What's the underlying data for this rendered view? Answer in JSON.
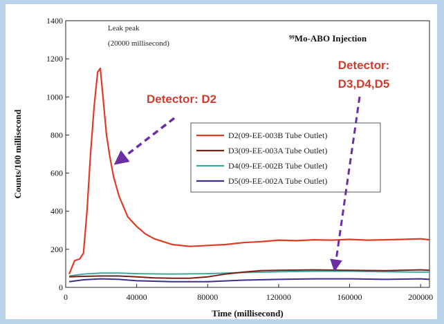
{
  "chart_data": {
    "type": "line",
    "title": "⁹⁹Mo-ABO Injection",
    "xlabel": "Time (millisecond)",
    "ylabel": "Counts/100 millisecond",
    "xlim": [
      0,
      205000
    ],
    "ylim": [
      0,
      1400
    ],
    "xticks": [
      0,
      40000,
      80000,
      120000,
      160000,
      200000
    ],
    "yticks": [
      0,
      200,
      400,
      600,
      800,
      1000,
      1200,
      1400
    ],
    "legend_position": "center-right",
    "grid": false,
    "series": [
      {
        "name": "D2(09-EE-003B Tube Outlet)",
        "color": "#e03a22",
        "x": [
          2000,
          5000,
          8000,
          10000,
          12000,
          14000,
          16000,
          18000,
          19500,
          21000,
          23000,
          25000,
          27000,
          30000,
          35000,
          40000,
          45000,
          50000,
          55000,
          60000,
          70000,
          80000,
          90000,
          100000,
          110000,
          120000,
          130000,
          140000,
          150000,
          160000,
          170000,
          180000,
          190000,
          200000,
          205000
        ],
        "y": [
          70,
          140,
          150,
          180,
          400,
          700,
          950,
          1130,
          1150,
          1000,
          800,
          680,
          580,
          480,
          370,
          320,
          280,
          255,
          240,
          225,
          215,
          220,
          225,
          235,
          240,
          248,
          245,
          250,
          248,
          252,
          248,
          250,
          252,
          255,
          250
        ]
      },
      {
        "name": "D3(09-EE-003A Tube Outlet)",
        "color": "#7a1f16",
        "x": [
          2000,
          10000,
          20000,
          30000,
          40000,
          50000,
          60000,
          70000,
          80000,
          90000,
          100000,
          110000,
          120000,
          140000,
          160000,
          180000,
          200000,
          205000
        ],
        "y": [
          55,
          58,
          60,
          60,
          55,
          50,
          48,
          48,
          55,
          70,
          80,
          88,
          90,
          92,
          90,
          88,
          92,
          90
        ]
      },
      {
        "name": "D4(09-EE-002B Tube Outlet)",
        "color": "#3fa6a0",
        "x": [
          2000,
          10000,
          20000,
          30000,
          40000,
          60000,
          80000,
          100000,
          120000,
          140000,
          160000,
          180000,
          200000,
          205000
        ],
        "y": [
          60,
          70,
          75,
          75,
          72,
          70,
          72,
          78,
          82,
          85,
          85,
          82,
          80,
          80
        ]
      },
      {
        "name": "D5(09-EE-002A Tube Outlet)",
        "color": "#3a2f8f",
        "x": [
          2000,
          10000,
          20000,
          30000,
          40000,
          60000,
          80000,
          100000,
          120000,
          140000,
          160000,
          180000,
          200000,
          205000
        ],
        "y": [
          30,
          40,
          45,
          42,
          35,
          30,
          30,
          38,
          42,
          45,
          45,
          42,
          45,
          42
        ]
      }
    ],
    "annotations": {
      "peak_line1": "Leak peak",
      "peak_line2": "(20000 millisecond)",
      "callout_d2": "Detector: D2",
      "callout_d345_line1": "Detector:",
      "callout_d345_line2": "D3,D4,D5",
      "callout_color": "#d13a2c",
      "arrow_color": "#6b2fa3"
    }
  }
}
